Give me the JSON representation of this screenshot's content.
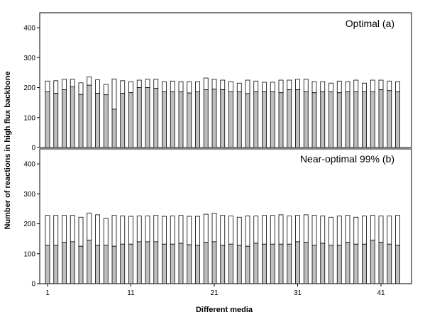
{
  "chart_data": {
    "type": "bar",
    "xlabel": "Different media",
    "ylabel": "Number of reactions in high flux backbone",
    "ylim": [
      0,
      450
    ],
    "y_ticks": [
      0,
      100,
      200,
      300,
      400
    ],
    "x_ticks": [
      1,
      11,
      21,
      31,
      41
    ],
    "stacked": true,
    "colors": {
      "lower": "#bfbfbf",
      "upper": "#ffffff",
      "stroke": "#000000"
    },
    "panels": [
      {
        "label": "Optimal (a)",
        "label_placement": "top-right",
        "x": [
          1,
          2,
          3,
          4,
          5,
          6,
          7,
          8,
          9,
          10,
          11,
          12,
          13,
          14,
          15,
          16,
          17,
          18,
          19,
          20,
          21,
          22,
          23,
          24,
          25,
          26,
          27,
          28,
          29,
          30,
          31,
          32,
          33,
          34,
          35,
          36,
          37,
          38,
          39,
          40,
          41,
          42,
          43
        ],
        "lower": [
          186,
          181,
          193,
          203,
          177,
          208,
          181,
          176,
          128,
          181,
          183,
          200,
          200,
          198,
          186,
          186,
          186,
          182,
          186,
          193,
          195,
          193,
          186,
          186,
          180,
          186,
          186,
          186,
          183,
          193,
          193,
          186,
          183,
          186,
          186,
          183,
          186,
          186,
          186,
          186,
          193,
          190,
          186
        ],
        "total": [
          222,
          223,
          228,
          228,
          216,
          236,
          226,
          211,
          229,
          223,
          220,
          225,
          228,
          228,
          220,
          222,
          220,
          220,
          220,
          232,
          228,
          225,
          220,
          215,
          225,
          222,
          218,
          218,
          225,
          225,
          228,
          228,
          220,
          220,
          215,
          222,
          220,
          225,
          215,
          225,
          225,
          222,
          220
        ]
      },
      {
        "label": "Near-optimal 99% (b)",
        "label_placement": "top-right",
        "x": [
          1,
          2,
          3,
          4,
          5,
          6,
          7,
          8,
          9,
          10,
          11,
          12,
          13,
          14,
          15,
          16,
          17,
          18,
          19,
          20,
          21,
          22,
          23,
          24,
          25,
          26,
          27,
          28,
          29,
          30,
          31,
          32,
          33,
          34,
          35,
          36,
          37,
          38,
          39,
          40,
          41,
          42,
          43
        ],
        "lower": [
          128,
          128,
          138,
          140,
          125,
          145,
          128,
          128,
          125,
          132,
          132,
          140,
          140,
          140,
          132,
          132,
          135,
          130,
          128,
          138,
          140,
          128,
          132,
          128,
          125,
          135,
          132,
          132,
          132,
          132,
          140,
          138,
          128,
          135,
          128,
          128,
          138,
          132,
          132,
          145,
          138,
          132,
          128
        ],
        "total": [
          228,
          228,
          228,
          228,
          222,
          236,
          230,
          218,
          228,
          226,
          225,
          226,
          226,
          228,
          225,
          226,
          228,
          225,
          225,
          232,
          235,
          228,
          226,
          222,
          226,
          226,
          228,
          228,
          230,
          226,
          228,
          230,
          228,
          226,
          222,
          226,
          228,
          222,
          226,
          228,
          226,
          226,
          228
        ]
      }
    ]
  }
}
